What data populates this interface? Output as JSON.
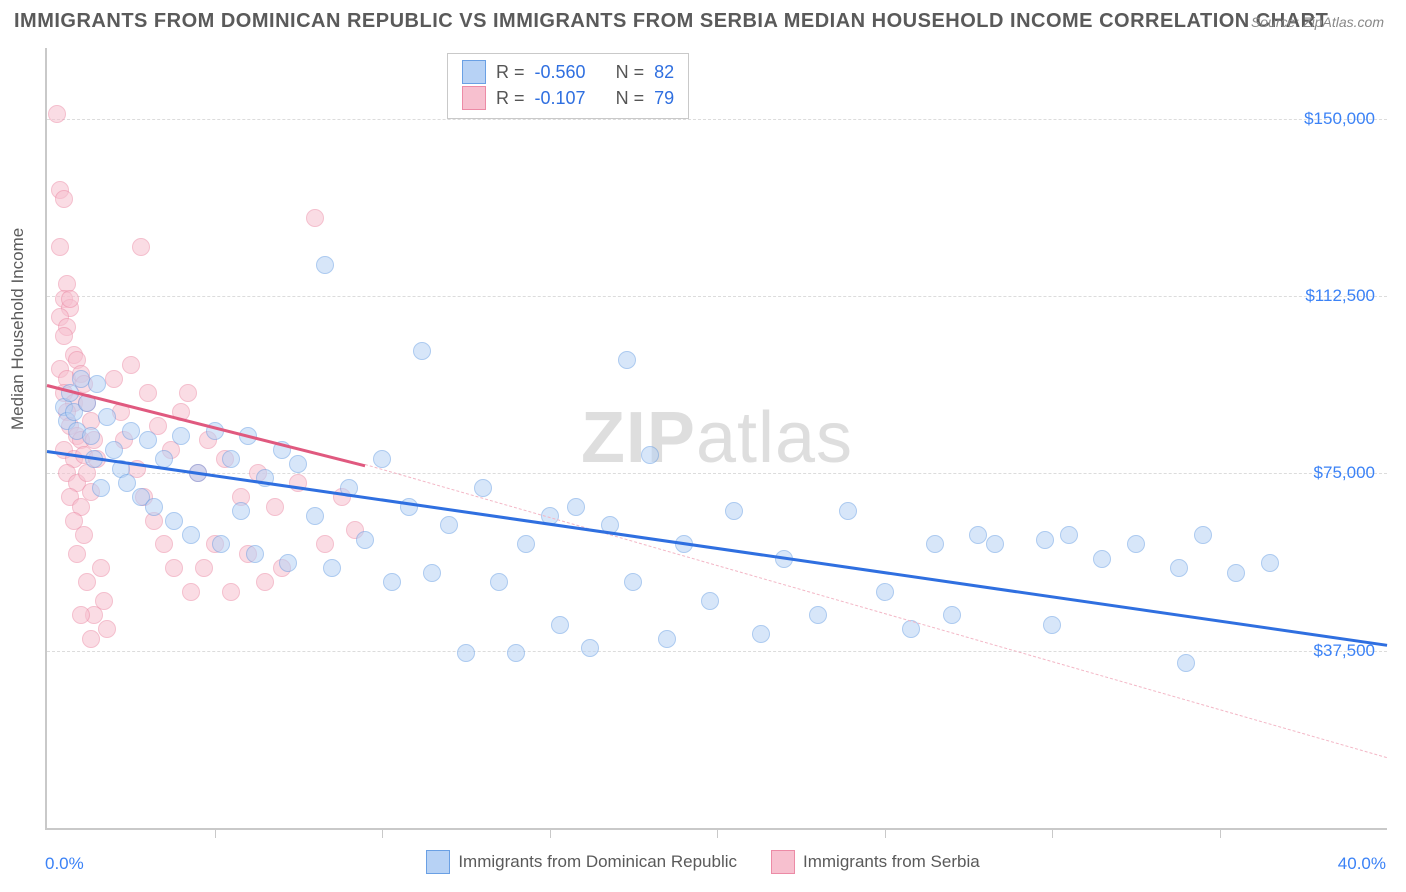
{
  "title": "IMMIGRANTS FROM DOMINICAN REPUBLIC VS IMMIGRANTS FROM SERBIA MEDIAN HOUSEHOLD INCOME CORRELATION CHART",
  "source": "Source: ZipAtlas.com",
  "watermark_bold": "ZIP",
  "watermark_rest": "atlas",
  "y_axis_label": "Median Household Income",
  "chart": {
    "type": "scatter",
    "xlim": [
      0,
      40
    ],
    "ylim": [
      0,
      165000
    ],
    "x_min_label": "0.0%",
    "x_max_label": "40.0%",
    "x_tick_positions": [
      5,
      10,
      15,
      20,
      25,
      30,
      35
    ],
    "y_ticks": [
      {
        "v": 37500,
        "label": "$37,500"
      },
      {
        "v": 75000,
        "label": "$75,000"
      },
      {
        "v": 112500,
        "label": "$112,500"
      },
      {
        "v": 150000,
        "label": "$150,000"
      }
    ],
    "grid_color": "#dcdcdc",
    "background_color": "#ffffff",
    "marker_radius": 9,
    "series": [
      {
        "name": "Immigrants from Dominican Republic",
        "fill": "#b7d2f5",
        "stroke": "#6aa0e4",
        "fill_opacity": 0.55,
        "R": "-0.560",
        "N": "82",
        "trend": {
          "x1": 0,
          "y1": 80000,
          "x2": 40,
          "y2": 39000,
          "color": "#2f6fe0",
          "width": 3,
          "dash": false
        },
        "points": [
          [
            0.5,
            89000
          ],
          [
            0.6,
            86000
          ],
          [
            0.7,
            92000
          ],
          [
            0.8,
            88000
          ],
          [
            0.9,
            84000
          ],
          [
            1.0,
            95000
          ],
          [
            1.2,
            90000
          ],
          [
            1.3,
            83000
          ],
          [
            1.4,
            78000
          ],
          [
            1.5,
            94000
          ],
          [
            1.6,
            72000
          ],
          [
            1.8,
            87000
          ],
          [
            2.0,
            80000
          ],
          [
            2.2,
            76000
          ],
          [
            2.4,
            73000
          ],
          [
            2.5,
            84000
          ],
          [
            2.8,
            70000
          ],
          [
            3.0,
            82000
          ],
          [
            3.2,
            68000
          ],
          [
            3.5,
            78000
          ],
          [
            3.8,
            65000
          ],
          [
            4.0,
            83000
          ],
          [
            4.3,
            62000
          ],
          [
            4.5,
            75000
          ],
          [
            5.0,
            84000
          ],
          [
            5.2,
            60000
          ],
          [
            5.5,
            78000
          ],
          [
            5.8,
            67000
          ],
          [
            6.0,
            83000
          ],
          [
            6.2,
            58000
          ],
          [
            6.5,
            74000
          ],
          [
            7.0,
            80000
          ],
          [
            7.2,
            56000
          ],
          [
            7.5,
            77000
          ],
          [
            8.0,
            66000
          ],
          [
            8.3,
            119000
          ],
          [
            8.5,
            55000
          ],
          [
            9.0,
            72000
          ],
          [
            9.5,
            61000
          ],
          [
            10.0,
            78000
          ],
          [
            10.3,
            52000
          ],
          [
            10.8,
            68000
          ],
          [
            11.2,
            101000
          ],
          [
            11.5,
            54000
          ],
          [
            12.0,
            64000
          ],
          [
            12.5,
            37000
          ],
          [
            13.0,
            72000
          ],
          [
            13.5,
            52000
          ],
          [
            14.0,
            37000
          ],
          [
            14.3,
            60000
          ],
          [
            15.0,
            66000
          ],
          [
            15.3,
            43000
          ],
          [
            15.8,
            68000
          ],
          [
            16.2,
            38000
          ],
          [
            16.8,
            64000
          ],
          [
            17.3,
            99000
          ],
          [
            17.5,
            52000
          ],
          [
            18.0,
            79000
          ],
          [
            18.5,
            40000
          ],
          [
            19.0,
            60000
          ],
          [
            19.8,
            48000
          ],
          [
            20.5,
            67000
          ],
          [
            21.3,
            41000
          ],
          [
            22.0,
            57000
          ],
          [
            23.0,
            45000
          ],
          [
            23.9,
            67000
          ],
          [
            25.0,
            50000
          ],
          [
            25.8,
            42000
          ],
          [
            26.5,
            60000
          ],
          [
            27.0,
            45000
          ],
          [
            27.8,
            62000
          ],
          [
            28.3,
            60000
          ],
          [
            29.8,
            61000
          ],
          [
            30.0,
            43000
          ],
          [
            30.5,
            62000
          ],
          [
            31.5,
            57000
          ],
          [
            32.5,
            60000
          ],
          [
            33.8,
            55000
          ],
          [
            34.0,
            35000
          ],
          [
            34.5,
            62000
          ],
          [
            35.5,
            54000
          ],
          [
            36.5,
            56000
          ]
        ]
      },
      {
        "name": "Immigrants from Serbia",
        "fill": "#f7c0cf",
        "stroke": "#ec8ba6",
        "fill_opacity": 0.55,
        "R": "-0.107",
        "N": "79",
        "trend_solid": {
          "x1": 0,
          "y1": 94000,
          "x2": 9.5,
          "y2": 77000,
          "color": "#e0597f",
          "width": 3,
          "dash": false
        },
        "trend_dash": {
          "x1": 9.5,
          "y1": 77000,
          "x2": 40,
          "y2": 15000,
          "color": "#f3b7c6",
          "width": 1,
          "dash": true
        },
        "points": [
          [
            0.3,
            151000
          ],
          [
            0.4,
            135000
          ],
          [
            0.5,
            133000
          ],
          [
            0.4,
            123000
          ],
          [
            0.6,
            115000
          ],
          [
            0.5,
            112000
          ],
          [
            0.7,
            110000
          ],
          [
            0.4,
            108000
          ],
          [
            0.6,
            106000
          ],
          [
            0.5,
            104000
          ],
          [
            0.8,
            100000
          ],
          [
            0.4,
            97000
          ],
          [
            0.7,
            112000
          ],
          [
            0.6,
            95000
          ],
          [
            0.9,
            99000
          ],
          [
            0.5,
            92000
          ],
          [
            0.8,
            90000
          ],
          [
            0.6,
            88000
          ],
          [
            1.0,
            96000
          ],
          [
            0.7,
            85000
          ],
          [
            0.9,
            83000
          ],
          [
            0.5,
            80000
          ],
          [
            1.1,
            94000
          ],
          [
            0.8,
            78000
          ],
          [
            1.0,
            82000
          ],
          [
            0.6,
            75000
          ],
          [
            1.2,
            90000
          ],
          [
            0.9,
            73000
          ],
          [
            1.1,
            79000
          ],
          [
            0.7,
            70000
          ],
          [
            1.3,
            86000
          ],
          [
            1.0,
            68000
          ],
          [
            1.2,
            75000
          ],
          [
            0.8,
            65000
          ],
          [
            1.4,
            82000
          ],
          [
            1.1,
            62000
          ],
          [
            1.3,
            71000
          ],
          [
            0.9,
            58000
          ],
          [
            1.5,
            78000
          ],
          [
            1.6,
            55000
          ],
          [
            1.2,
            52000
          ],
          [
            1.7,
            48000
          ],
          [
            1.4,
            45000
          ],
          [
            1.8,
            42000
          ],
          [
            1.3,
            40000
          ],
          [
            1.0,
            45000
          ],
          [
            2.0,
            95000
          ],
          [
            2.2,
            88000
          ],
          [
            2.3,
            82000
          ],
          [
            2.5,
            98000
          ],
          [
            2.7,
            76000
          ],
          [
            2.8,
            123000
          ],
          [
            2.9,
            70000
          ],
          [
            3.0,
            92000
          ],
          [
            3.2,
            65000
          ],
          [
            3.3,
            85000
          ],
          [
            3.5,
            60000
          ],
          [
            3.7,
            80000
          ],
          [
            3.8,
            55000
          ],
          [
            4.0,
            88000
          ],
          [
            4.2,
            92000
          ],
          [
            4.3,
            50000
          ],
          [
            4.5,
            75000
          ],
          [
            4.7,
            55000
          ],
          [
            4.8,
            82000
          ],
          [
            5.0,
            60000
          ],
          [
            5.3,
            78000
          ],
          [
            5.5,
            50000
          ],
          [
            5.8,
            70000
          ],
          [
            6.0,
            58000
          ],
          [
            6.3,
            75000
          ],
          [
            6.5,
            52000
          ],
          [
            6.8,
            68000
          ],
          [
            7.0,
            55000
          ],
          [
            7.5,
            73000
          ],
          [
            8.0,
            129000
          ],
          [
            8.3,
            60000
          ],
          [
            8.8,
            70000
          ],
          [
            9.2,
            63000
          ]
        ]
      }
    ]
  },
  "legend_top": {
    "R_label": "R =",
    "N_label": "N ="
  },
  "legend_bottom_labels": [
    "Immigrants from Dominican Republic",
    "Immigrants from Serbia"
  ]
}
